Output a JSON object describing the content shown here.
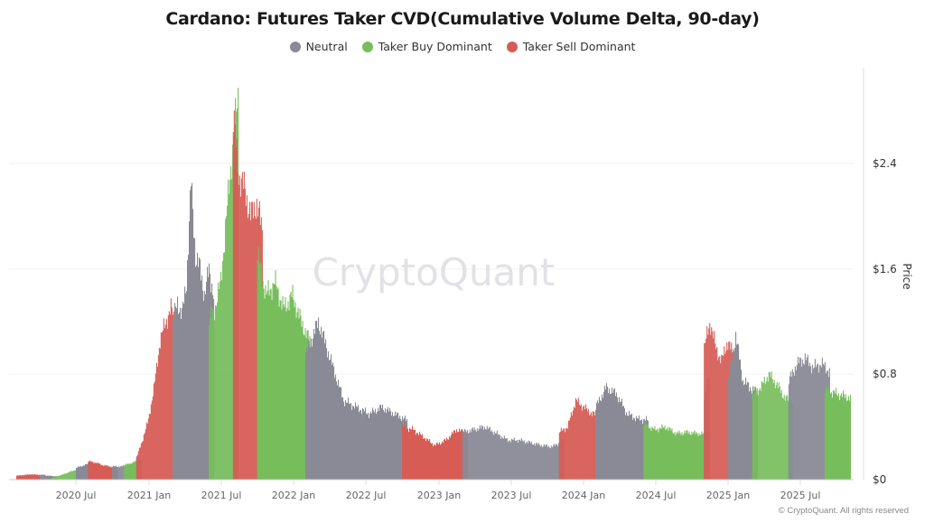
{
  "chart_data": {
    "type": "bar",
    "title": "Cardano: Futures Taker CVD(Cumulative Volume Delta, 90-day)",
    "xlabel": "",
    "ylabel": "Price",
    "ylim": [
      0,
      2.85
    ],
    "y_ticks": [
      "$0",
      "$0.8",
      "$1.6",
      "$2.4"
    ],
    "y_tick_values": [
      0,
      0.8,
      1.6,
      2.4
    ],
    "x_ticks": [
      "2020 Jul",
      "2021 Jan",
      "2021 Jul",
      "2022 Jan",
      "2022 Jul",
      "2023 Jan",
      "2023 Jul",
      "2024 Jan",
      "2024 Jul",
      "2025 Jan",
      "2025 Jul"
    ],
    "grid": true,
    "legend_position": "top",
    "legend": [
      {
        "name": "Neutral",
        "color": "#8a8a96"
      },
      {
        "name": "Taker Buy Dominant",
        "color": "#77bd5c"
      },
      {
        "name": "Taker Sell Dominant",
        "color": "#d65c55"
      }
    ],
    "series_note": "ADA price bars colored by 90-day futures taker CVD regime; segments are approximate date ranges with approximate price paths",
    "segments": [
      {
        "start": "2020-03",
        "end": "2020-04",
        "regime": "Taker Sell Dominant",
        "prices": [
          0.03,
          0.04,
          0.035
        ]
      },
      {
        "start": "2020-04",
        "end": "2020-05",
        "regime": "Neutral",
        "prices": [
          0.035,
          0.03,
          0.025
        ]
      },
      {
        "start": "2020-05",
        "end": "2020-07",
        "regime": "Taker Buy Dominant",
        "prices": [
          0.02,
          0.03,
          0.05,
          0.07,
          0.09
        ]
      },
      {
        "start": "2020-07",
        "end": "2020-08",
        "regime": "Neutral",
        "prices": [
          0.09,
          0.11,
          0.13
        ]
      },
      {
        "start": "2020-08",
        "end": "2020-10",
        "regime": "Taker Sell Dominant",
        "prices": [
          0.14,
          0.13,
          0.11,
          0.1,
          0.09
        ]
      },
      {
        "start": "2020-10",
        "end": "2020-11",
        "regime": "Neutral",
        "prices": [
          0.1,
          0.1,
          0.11
        ]
      },
      {
        "start": "2020-11",
        "end": "2020-12",
        "regime": "Taker Buy Dominant",
        "prices": [
          0.11,
          0.15
        ]
      },
      {
        "start": "2020-12",
        "end": "2020-12",
        "regime": "Neutral",
        "prices": [
          0.16,
          0.15
        ]
      },
      {
        "start": "2020-12",
        "end": "2021-03",
        "regime": "Taker Sell Dominant",
        "prices": [
          0.17,
          0.3,
          0.45,
          0.7,
          1.05,
          1.2,
          1.3,
          1.15
        ]
      },
      {
        "start": "2021-03",
        "end": "2021-06",
        "regime": "Neutral",
        "prices": [
          1.2,
          1.35,
          1.25,
          1.5,
          2.25,
          1.7,
          1.6,
          1.4,
          1.6,
          1.4
        ]
      },
      {
        "start": "2021-06",
        "end": "2021-08",
        "regime": "Taker Buy Dominant",
        "prices": [
          1.2,
          1.3,
          1.5,
          2.0,
          2.5,
          2.9
        ]
      },
      {
        "start": "2021-08",
        "end": "2021-10",
        "regime": "Taker Sell Dominant",
        "prices": [
          2.75,
          2.3,
          2.2,
          2.0,
          2.1,
          1.9
        ]
      },
      {
        "start": "2021-10",
        "end": "2022-02",
        "regime": "Taker Buy Dominant",
        "prices": [
          1.7,
          1.4,
          1.5,
          1.3,
          1.4,
          1.2,
          1.05
        ]
      },
      {
        "start": "2022-02",
        "end": "2022-10",
        "regime": "Neutral",
        "prices": [
          0.95,
          1.2,
          0.9,
          0.6,
          0.55,
          0.5,
          0.55,
          0.5,
          0.45
        ]
      },
      {
        "start": "2022-10",
        "end": "2023-03",
        "regime": "Taker Sell Dominant",
        "prices": [
          0.4,
          0.38,
          0.32,
          0.26,
          0.3,
          0.38,
          0.35
        ]
      },
      {
        "start": "2023-03",
        "end": "2023-11",
        "regime": "Neutral",
        "prices": [
          0.36,
          0.38,
          0.4,
          0.35,
          0.3,
          0.3,
          0.28,
          0.26,
          0.25,
          0.3
        ]
      },
      {
        "start": "2023-11",
        "end": "2024-02",
        "regime": "Taker Sell Dominant",
        "prices": [
          0.36,
          0.4,
          0.6,
          0.55,
          0.5,
          0.48
        ]
      },
      {
        "start": "2024-02",
        "end": "2024-06",
        "regime": "Neutral",
        "prices": [
          0.55,
          0.7,
          0.65,
          0.5,
          0.46,
          0.45
        ]
      },
      {
        "start": "2024-06",
        "end": "2024-11",
        "regime": "Taker Buy Dominant",
        "prices": [
          0.42,
          0.38,
          0.4,
          0.35,
          0.36,
          0.35,
          0.34
        ]
      },
      {
        "start": "2024-11",
        "end": "2024-11",
        "regime": "Neutral",
        "prices": [
          0.6,
          0.8
        ]
      },
      {
        "start": "2024-11",
        "end": "2025-01",
        "regime": "Taker Sell Dominant",
        "prices": [
          1.0,
          1.2,
          1.0,
          0.9,
          1.05,
          0.95
        ]
      },
      {
        "start": "2025-01",
        "end": "2025-03",
        "regime": "Neutral",
        "prices": [
          0.75,
          1.1,
          0.75,
          0.7,
          0.65
        ]
      },
      {
        "start": "2025-03",
        "end": "2025-06",
        "regime": "Taker Buy Dominant",
        "prices": [
          0.65,
          0.7,
          0.8,
          0.72,
          0.62,
          0.58
        ]
      },
      {
        "start": "2025-06",
        "end": "2025-09",
        "regime": "Neutral",
        "prices": [
          0.75,
          0.88,
          0.92,
          0.85,
          0.88,
          0.82
        ]
      },
      {
        "start": "2025-09",
        "end": "2025-10",
        "regime": "Taker Buy Dominant",
        "prices": [
          0.68,
          0.65,
          0.62
        ]
      }
    ]
  },
  "watermark": "CryptoQuant",
  "copyright": "© CryptoQuant. All rights reserved"
}
